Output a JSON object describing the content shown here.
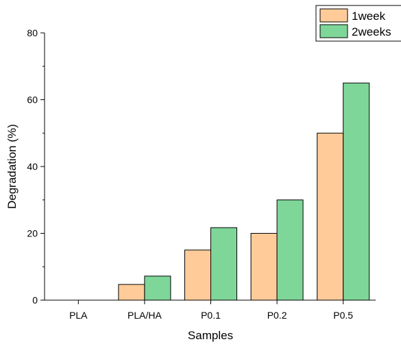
{
  "chart_data": {
    "type": "bar",
    "title": "",
    "xlabel": "Samples",
    "ylabel": "Degradation (%)",
    "ylim": [
      0,
      80
    ],
    "yticks": [
      0,
      20,
      40,
      60,
      80
    ],
    "categories": [
      "PLA",
      "PLA/HA",
      "P0.1",
      "P0.2",
      "P0.5"
    ],
    "series": [
      {
        "name": "1week",
        "values": [
          0,
          4.7,
          15,
          20,
          50
        ],
        "color": "#FFCC99"
      },
      {
        "name": "2weeks",
        "values": [
          0,
          7.2,
          21.7,
          30,
          65
        ],
        "color": "#7FD699"
      }
    ],
    "legend_position": "top-right",
    "grid": false
  }
}
